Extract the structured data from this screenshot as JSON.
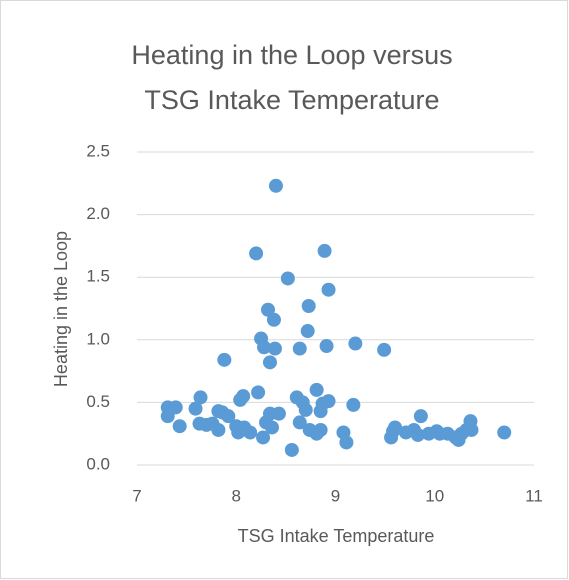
{
  "chart_data": {
    "type": "scatter",
    "title": [
      "Heating in the Loop versus",
      "TSG Intake Temperature"
    ],
    "x_label": "TSG Intake Temperature",
    "y_label": "Heating in the Loop",
    "color": "#5b9bd5",
    "grid": true,
    "xlim": [
      7,
      11
    ],
    "xticks": [
      7,
      8,
      9,
      10,
      11
    ],
    "ylim": [
      0,
      2.5
    ],
    "yticks": [
      {
        "value": 0,
        "label": "0.0"
      },
      0.5,
      {
        "value": 1,
        "label": "1.0"
      },
      1.5,
      {
        "value": 2,
        "label": "2.0"
      },
      2.5
    ],
    "x": [
      7.31,
      7.31,
      7.39,
      7.43,
      7.59,
      7.64,
      7.63,
      7.7,
      7.76,
      7.82,
      7.82,
      7.86,
      7.88,
      7.92,
      8.0,
      8.02,
      8.04,
      8.07,
      8.08,
      8.14,
      8.2,
      8.22,
      8.25,
      8.28,
      8.27,
      8.3,
      8.32,
      8.34,
      8.34,
      8.36,
      8.38,
      8.4,
      8.39,
      8.43,
      8.52,
      8.56,
      8.61,
      8.64,
      8.64,
      8.67,
      8.7,
      8.72,
      8.73,
      8.74,
      8.81,
      8.81,
      8.85,
      8.85,
      8.87,
      8.89,
      8.91,
      8.93,
      8.93,
      9.08,
      9.11,
      9.18,
      9.2,
      9.49,
      9.56,
      9.58,
      9.6,
      9.71,
      9.79,
      9.83,
      9.86,
      9.94,
      10.02,
      10.05,
      10.13,
      10.21,
      10.24,
      10.27,
      10.32,
      10.36,
      10.37,
      10.7
    ],
    "values": [
      0.46,
      0.39,
      0.46,
      0.31,
      0.45,
      0.54,
      0.33,
      0.32,
      0.33,
      0.43,
      0.28,
      0.42,
      0.84,
      0.39,
      0.31,
      0.26,
      0.52,
      0.55,
      0.3,
      0.26,
      1.69,
      0.58,
      1.01,
      0.94,
      0.22,
      0.34,
      1.24,
      0.82,
      0.41,
      0.3,
      1.16,
      2.23,
      0.93,
      0.41,
      1.49,
      0.12,
      0.54,
      0.93,
      0.34,
      0.5,
      0.44,
      1.07,
      1.27,
      0.28,
      0.6,
      0.25,
      0.28,
      0.43,
      0.49,
      1.71,
      0.95,
      0.51,
      1.4,
      0.26,
      0.18,
      0.48,
      0.97,
      0.92,
      0.22,
      0.27,
      0.3,
      0.26,
      0.28,
      0.24,
      0.39,
      0.25,
      0.27,
      0.25,
      0.25,
      0.22,
      0.2,
      0.25,
      0.28,
      0.35,
      0.28,
      0.26
    ]
  }
}
